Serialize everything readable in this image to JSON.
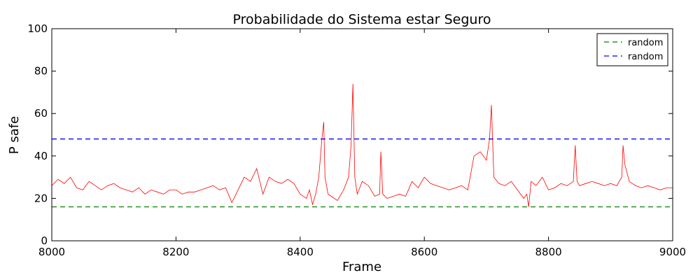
{
  "chart_data": {
    "type": "line",
    "title": "Probabilidade do Sistema estar Seguro",
    "xlabel": "Frame",
    "ylabel": "P safe",
    "xlim": [
      8000,
      9000
    ],
    "ylim": [
      0,
      100
    ],
    "xticks": [
      8000,
      8200,
      8400,
      8600,
      8800,
      9000
    ],
    "yticks": [
      0,
      20,
      40,
      60,
      80,
      100
    ],
    "grid": false,
    "legend_position": "top-right",
    "legend": [
      {
        "label": "random",
        "color": "#008000",
        "style": "dashed"
      },
      {
        "label": "random",
        "color": "#0000ff",
        "style": "dashed"
      }
    ],
    "series": [
      {
        "color": "#ff0000",
        "style": "solid",
        "x": [
          8000,
          8010,
          8020,
          8030,
          8040,
          8050,
          8060,
          8070,
          8080,
          8090,
          8100,
          8110,
          8120,
          8130,
          8140,
          8150,
          8160,
          8170,
          8180,
          8190,
          8200,
          8210,
          8220,
          8230,
          8240,
          8250,
          8260,
          8270,
          8280,
          8290,
          8300,
          8310,
          8320,
          8330,
          8340,
          8350,
          8360,
          8370,
          8380,
          8390,
          8400,
          8410,
          8415,
          8420,
          8425,
          8430,
          8435,
          8438,
          8440,
          8445,
          8450,
          8460,
          8470,
          8478,
          8482,
          8485,
          8488,
          8492,
          8500,
          8510,
          8520,
          8528,
          8530,
          8533,
          8540,
          8550,
          8560,
          8570,
          8580,
          8590,
          8600,
          8610,
          8620,
          8630,
          8640,
          8650,
          8660,
          8670,
          8680,
          8690,
          8700,
          8705,
          8708,
          8712,
          8720,
          8730,
          8740,
          8750,
          8760,
          8765,
          8768,
          8772,
          8780,
          8790,
          8800,
          8810,
          8820,
          8830,
          8840,
          8843,
          8846,
          8850,
          8860,
          8870,
          8880,
          8890,
          8900,
          8910,
          8918,
          8920,
          8923,
          8930,
          8940,
          8950,
          8960,
          8970,
          8980,
          8990,
          9000
        ],
        "y": [
          26,
          29,
          27,
          30,
          25,
          24,
          28,
          26,
          24,
          26,
          27,
          25,
          24,
          23,
          25,
          22,
          24,
          23,
          22,
          24,
          24,
          22,
          23,
          23,
          24,
          25,
          26,
          24,
          25,
          18,
          24,
          30,
          28,
          34,
          22,
          30,
          28,
          27,
          29,
          27,
          22,
          20,
          24,
          17,
          22,
          30,
          48,
          56,
          30,
          22,
          21,
          19,
          24,
          30,
          45,
          74,
          30,
          22,
          28,
          26,
          21,
          22,
          42,
          22,
          20,
          21,
          22,
          21,
          28,
          25,
          30,
          27,
          26,
          25,
          24,
          25,
          26,
          24,
          40,
          42,
          38,
          48,
          64,
          30,
          27,
          26,
          28,
          24,
          20,
          22,
          16,
          28,
          26,
          30,
          24,
          25,
          27,
          26,
          28,
          45,
          28,
          26,
          27,
          28,
          27,
          26,
          27,
          26,
          30,
          45,
          36,
          28,
          26,
          25,
          26,
          25,
          24,
          25,
          25
        ]
      },
      {
        "color": "#008000",
        "style": "dashed",
        "x": [
          8000,
          9000
        ],
        "y": [
          16,
          16
        ]
      },
      {
        "color": "#0000ff",
        "style": "dashed",
        "x": [
          8000,
          9000
        ],
        "y": [
          48,
          48
        ]
      }
    ]
  }
}
